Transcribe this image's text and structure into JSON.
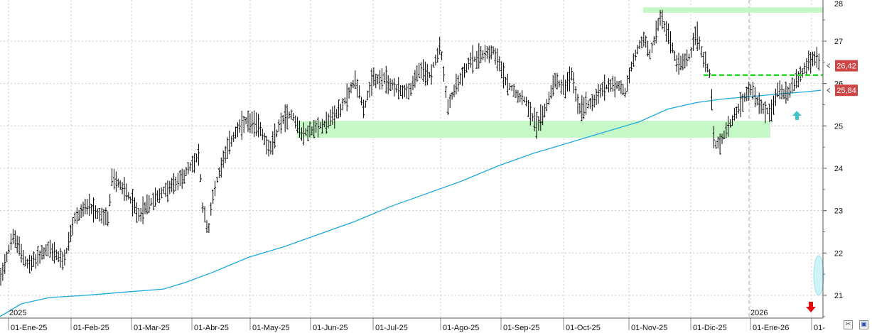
{
  "chart_data": {
    "type": "ohlc",
    "year_labels": [
      "2025",
      "2026"
    ],
    "x_tick_labels": [
      "01-Ene-25",
      "01-Feb-25",
      "01-Mar-25",
      "01-Abr-25",
      "01-May-25",
      "01-Jun-25",
      "01-Jul-25",
      "01-Ago-25",
      "01-Sep-25",
      "01-Oct-25",
      "01-Nov-25",
      "01-Dic-25",
      "01-Ene-26",
      "01-"
    ],
    "y_ticks": [
      21,
      22,
      23,
      24,
      25,
      26,
      27,
      28
    ],
    "ylim": [
      20.4,
      28.0
    ],
    "last_price": "26,42",
    "moving_average_last": "25,84",
    "support_zone": [
      24.72,
      25.12
    ],
    "resistance_zone": [
      27.67,
      27.8
    ],
    "dashed_level": 26.2,
    "colors": {
      "bars": "#000000",
      "moving_average": "#1ea8e0",
      "zone_fill": "#c6f7c6",
      "dashed_level": "#22dd22",
      "price_tag": "#d04545",
      "up_arrow": "#3ec6cc",
      "down_arrow": "#e01010",
      "grid": "#c8c8c8"
    },
    "grid": true,
    "bar_anchors": [
      [
        0,
        21.4
      ],
      [
        18,
        22.4
      ],
      [
        40,
        21.7
      ],
      [
        68,
        22.1
      ],
      [
        90,
        21.8
      ],
      [
        105,
        22.8
      ],
      [
        120,
        23.1
      ],
      [
        140,
        22.9
      ],
      [
        152,
        22.8
      ],
      [
        158,
        23.8
      ],
      [
        180,
        23.4
      ],
      [
        195,
        22.9
      ],
      [
        212,
        23.2
      ],
      [
        225,
        23.4
      ],
      [
        245,
        23.6
      ],
      [
        262,
        23.9
      ],
      [
        280,
        24.3
      ],
      [
        285,
        23.1
      ],
      [
        293,
        22.5
      ],
      [
        300,
        23.4
      ],
      [
        315,
        24.3
      ],
      [
        330,
        24.8
      ],
      [
        345,
        25.1
      ],
      [
        365,
        25.0
      ],
      [
        380,
        24.4
      ],
      [
        395,
        25.1
      ],
      [
        410,
        25.3
      ],
      [
        425,
        24.8
      ],
      [
        440,
        24.9
      ],
      [
        460,
        25.1
      ],
      [
        480,
        25.4
      ],
      [
        500,
        26.1
      ],
      [
        512,
        25.4
      ],
      [
        525,
        26.1
      ],
      [
        540,
        26.1
      ],
      [
        555,
        25.9
      ],
      [
        575,
        25.8
      ],
      [
        590,
        26.3
      ],
      [
        605,
        26.2
      ],
      [
        620,
        26.9
      ],
      [
        630,
        25.4
      ],
      [
        640,
        25.9
      ],
      [
        660,
        26.5
      ],
      [
        680,
        26.7
      ],
      [
        695,
        26.8
      ],
      [
        710,
        26.1
      ],
      [
        725,
        25.8
      ],
      [
        740,
        25.6
      ],
      [
        755,
        25.0
      ],
      [
        770,
        25.5
      ],
      [
        780,
        26.1
      ],
      [
        795,
        25.9
      ],
      [
        805,
        26.2
      ],
      [
        815,
        25.4
      ],
      [
        835,
        25.6
      ],
      [
        850,
        25.9
      ],
      [
        865,
        26.0
      ],
      [
        880,
        25.8
      ],
      [
        890,
        26.5
      ],
      [
        905,
        27.1
      ],
      [
        915,
        26.7
      ],
      [
        930,
        27.6
      ],
      [
        945,
        26.9
      ],
      [
        955,
        26.4
      ],
      [
        970,
        26.6
      ],
      [
        980,
        27.2
      ],
      [
        990,
        26.6
      ],
      [
        1000,
        26.2
      ],
      [
        1005,
        24.5
      ],
      [
        1020,
        24.8
      ],
      [
        1035,
        25.3
      ],
      [
        1045,
        25.6
      ],
      [
        1055,
        25.9
      ],
      [
        1065,
        25.6
      ],
      [
        1075,
        25.4
      ],
      [
        1085,
        25.3
      ],
      [
        1095,
        25.9
      ],
      [
        1105,
        25.7
      ],
      [
        1115,
        25.9
      ],
      [
        1125,
        26.2
      ],
      [
        1135,
        26.4
      ],
      [
        1145,
        26.6
      ],
      [
        1155,
        26.5
      ]
    ],
    "moving_average_points": [
      [
        0,
        20.5
      ],
      [
        30,
        20.8
      ],
      [
        70,
        20.95
      ],
      [
        120,
        21.0
      ],
      [
        170,
        21.07
      ],
      [
        230,
        21.15
      ],
      [
        260,
        21.3
      ],
      [
        300,
        21.55
      ],
      [
        350,
        21.9
      ],
      [
        400,
        22.15
      ],
      [
        450,
        22.45
      ],
      [
        500,
        22.75
      ],
      [
        550,
        23.1
      ],
      [
        600,
        23.4
      ],
      [
        650,
        23.7
      ],
      [
        700,
        24.05
      ],
      [
        750,
        24.35
      ],
      [
        800,
        24.6
      ],
      [
        850,
        24.85
      ],
      [
        900,
        25.1
      ],
      [
        940,
        25.4
      ],
      [
        980,
        25.55
      ],
      [
        1020,
        25.64
      ],
      [
        1060,
        25.7
      ],
      [
        1100,
        25.76
      ],
      [
        1130,
        25.8
      ],
      [
        1155,
        25.84
      ]
    ]
  },
  "toolbar": {
    "left_button_icon": "scissors-icon",
    "right_button_icon": "save-icon"
  }
}
